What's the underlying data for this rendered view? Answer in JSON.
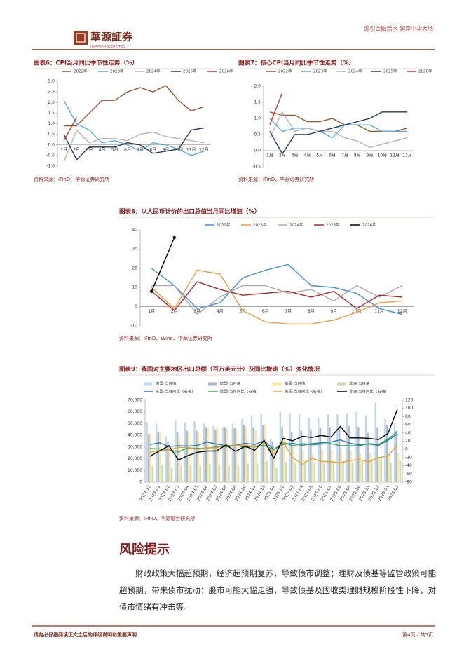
{
  "header": {
    "logo": "華源証券",
    "logo_en": "HUAYUAN SECURITIES",
    "slogan": "源引金融活水 润泽中华大地"
  },
  "chart_data": [
    {
      "type": "line",
      "title": "图表6：CPI当月同比季节性走势（%）",
      "source": "资料来源：iFinD、华源证券研究所",
      "categories": [
        "1月",
        "2月",
        "3月",
        "4月",
        "5月",
        "6月",
        "7月",
        "8月",
        "9月",
        "10月",
        "11月",
        "12月"
      ],
      "series": [
        {
          "name": "2022年",
          "color": "#a0522d",
          "values": [
            0.9,
            0.9,
            1.5,
            2.1,
            2.1,
            2.5,
            2.7,
            2.5,
            2.8,
            2.1,
            1.6,
            1.8
          ]
        },
        {
          "name": "2023年",
          "color": "#5aa9e6",
          "values": [
            2.1,
            1.0,
            0.7,
            0.1,
            0.2,
            0.0,
            -0.3,
            0.1,
            0.0,
            -0.2,
            -0.5,
            -0.3
          ]
        },
        {
          "name": "2024年",
          "color": "#b5b5b5",
          "values": [
            -0.8,
            0.7,
            0.1,
            0.3,
            0.3,
            0.2,
            0.5,
            0.6,
            0.4,
            0.3,
            0.2,
            0.1
          ]
        },
        {
          "name": "2025年",
          "color": "#1f3864",
          "values": [
            0.5,
            -0.7,
            -0.1,
            -0.1,
            -0.1,
            0.1,
            0.0,
            -0.4,
            -0.3,
            -0.2,
            0.7,
            0.8
          ]
        },
        {
          "name": "2026年",
          "color": "#c0392b",
          "values": [
            0.2,
            1.3,
            null,
            null,
            null,
            null,
            null,
            null,
            null,
            null,
            null,
            null
          ]
        }
      ],
      "ylim": [
        -1,
        3
      ],
      "yticks": [
        {
          "value": 3,
          "label": "3.0"
        },
        {
          "value": 2.5,
          "label": "2.5"
        },
        {
          "value": 2,
          "label": "2.0"
        },
        {
          "value": 1.5,
          "label": "1.5"
        },
        {
          "value": 1,
          "label": "1.0"
        },
        {
          "value": 0.5,
          "label": "0.5"
        },
        {
          "value": 0,
          "label": "0.0"
        },
        {
          "value": -0.5,
          "label": "-0.5"
        },
        {
          "value": -1,
          "label": "-1.0"
        }
      ],
      "legend": "top"
    },
    {
      "type": "line",
      "title": "图表7：核心CPI当月同比季节性走势（%）",
      "source": "资料来源：iFinD、华源证券研究所",
      "categories": [
        "1月",
        "2月",
        "3月",
        "4月",
        "5月",
        "6月",
        "7月",
        "8月",
        "9月",
        "10月",
        "11月",
        "12月"
      ],
      "series": [
        {
          "name": "2022年",
          "color": "#a0522d",
          "values": [
            1.2,
            1.1,
            1.1,
            0.9,
            0.9,
            1.0,
            0.8,
            0.8,
            0.6,
            0.6,
            0.6,
            0.7
          ]
        },
        {
          "name": "2023年",
          "color": "#5aa9e6",
          "values": [
            1.0,
            0.6,
            0.7,
            0.7,
            0.6,
            0.4,
            0.8,
            0.8,
            0.8,
            0.6,
            0.6,
            0.6
          ]
        },
        {
          "name": "2024年",
          "color": "#b5b5b5",
          "values": [
            0.4,
            1.2,
            0.6,
            0.7,
            0.6,
            0.6,
            0.4,
            0.3,
            0.1,
            0.2,
            0.3,
            0.4
          ]
        },
        {
          "name": "2025年",
          "color": "#1f3864",
          "values": [
            0.6,
            -0.1,
            0.5,
            0.5,
            0.6,
            0.7,
            0.8,
            0.9,
            1.0,
            1.2,
            1.2,
            1.2
          ]
        },
        {
          "name": "2026年",
          "color": "#c0392b",
          "values": [
            0.8,
            1.8,
            null,
            null,
            null,
            null,
            null,
            null,
            null,
            null,
            null,
            null
          ]
        }
      ],
      "ylim": [
        -0.5,
        2
      ],
      "yticks": [
        {
          "value": 2,
          "label": "2.0"
        },
        {
          "value": 1.5,
          "label": "1.5"
        },
        {
          "value": 1,
          "label": "1.0"
        },
        {
          "value": 0.5,
          "label": "0.5"
        },
        {
          "value": 0,
          "label": "0.0"
        },
        {
          "value": -0.5,
          "label": "-0.5"
        }
      ],
      "legend": "top"
    },
    {
      "type": "line",
      "title": "图表8：以人民币计价的出口总值当月同比增速（%）",
      "source": "资料来源：iFinD、Wind、华源证券研究所",
      "categories": [
        "1月",
        "2月",
        "3月",
        "4月",
        "5月",
        "6月",
        "7月",
        "8月",
        "9月",
        "10月",
        "11月",
        "12月"
      ],
      "series": [
        {
          "name": "2022年",
          "color": "#3a8ee6",
          "values": [
            20,
            11,
            -1,
            2,
            15,
            19,
            22,
            11,
            10,
            7,
            -1,
            -4
          ]
        },
        {
          "name": "2023年",
          "color": "#f39c3c",
          "values": [
            10,
            -1,
            19,
            17,
            -2,
            -8,
            -9,
            -9,
            -7,
            -3,
            2,
            3
          ]
        },
        {
          "name": "2024年",
          "color": "#aaaaaa",
          "values": [
            11,
            11,
            -4,
            5,
            11,
            11,
            7,
            9,
            3,
            11,
            5,
            11
          ]
        },
        {
          "name": "2025年",
          "color": "#b22222",
          "values": [
            8,
            -2,
            13,
            9,
            6,
            7,
            8,
            5,
            8,
            -1,
            6,
            5
          ]
        },
        {
          "name": "2026年",
          "color": "#000000",
          "values": [
            8,
            36,
            null,
            null,
            null,
            null,
            null,
            null,
            null,
            null,
            null,
            null
          ],
          "markers": true
        }
      ],
      "ylim": [
        -10,
        40
      ],
      "yticks": [
        40,
        30,
        20,
        10,
        0,
        -10
      ],
      "legend": "top"
    },
    {
      "type": "combo",
      "title": "图表9：我国对主要地区出口总额（百万美元计）及同比增速（%）变化情况",
      "source": "资料来源：iFinD、华源证券研究所",
      "categories": [
        "2023-12",
        "2024-01",
        "2024-02",
        "2024-03",
        "2024-04",
        "2024-05",
        "2024-06",
        "2024-07",
        "2024-08",
        "2024-09",
        "2024-10",
        "2024-11",
        "2024-12",
        "2025-01",
        "2025-02",
        "2025-03",
        "2025-04",
        "2025-05",
        "2025-06",
        "2025-07",
        "2025-08",
        "2025-09",
        "2025-10",
        "2025-11",
        "2025-12",
        "2026-01",
        "2026-02"
      ],
      "series": [
        {
          "name": "东盟:当月值",
          "color": "#bdd7ee",
          "kind": "bar",
          "values": [
            51000,
            50000,
            39000,
            53000,
            51000,
            52000,
            50000,
            48000,
            47000,
            50000,
            54000,
            57000,
            58000,
            37000,
            60000,
            59000,
            58000,
            55000,
            55000,
            58000,
            58000,
            59000,
            60000,
            57000,
            68000,
            54000,
            50000
          ]
        },
        {
          "name": "欧盟:当月值",
          "color": "#a9b8cc",
          "kind": "bar",
          "values": [
            41000,
            43000,
            35000,
            43000,
            44000,
            44000,
            47000,
            45000,
            47000,
            46000,
            49000,
            47000,
            49000,
            35000,
            47000,
            43000,
            44000,
            45000,
            46000,
            47000,
            47000,
            48000,
            47000,
            42000,
            47000,
            49000,
            44000
          ]
        },
        {
          "name": "美国:当月值",
          "color": "#ffe699",
          "kind": "bar",
          "values": [
            42000,
            43000,
            32000,
            38000,
            42000,
            43000,
            46000,
            46000,
            46000,
            44000,
            47000,
            45000,
            49000,
            30000,
            40000,
            32000,
            28000,
            25000,
            28000,
            27000,
            28000,
            27000,
            24000,
            25000,
            21000,
            24000,
            25000
          ]
        },
        {
          "name": "非洲:当月值",
          "color": "#c6e0b4",
          "kind": "bar",
          "values": [
            14000,
            15000,
            12000,
            15000,
            15000,
            14000,
            16000,
            15000,
            14000,
            14000,
            16000,
            16000,
            18000,
            12000,
            17000,
            17000,
            18000,
            17000,
            17000,
            18000,
            18000,
            17000,
            18000,
            20000,
            22000,
            17000,
            18000
          ]
        },
        {
          "name": "东盟:当月同比（右轴）",
          "color": "#2e75b6",
          "kind": "line",
          "axis": "y2",
          "values": [
            12,
            16,
            7,
            9,
            8,
            10,
            18,
            13,
            9,
            10,
            15,
            12,
            21,
            0,
            12,
            15,
            10,
            14,
            16,
            18,
            23,
            15,
            11,
            13,
            10,
            22,
            38
          ]
        },
        {
          "name": "欧盟:当月同比（右轴）",
          "color": "#2eaa5c",
          "kind": "line",
          "axis": "y2",
          "values": [
            2,
            1,
            -1,
            -6,
            4,
            2,
            3,
            6,
            6,
            10,
            5,
            8,
            10,
            -1,
            17,
            9,
            14,
            11,
            13,
            14,
            9,
            9,
            9,
            14,
            12,
            25,
            44
          ]
        },
        {
          "name": "美国:当月同比（右轴）",
          "color": "#f0a030",
          "kind": "line",
          "axis": "y2",
          "values": [
            -7,
            -3,
            -1,
            5,
            5,
            0,
            4,
            4,
            9,
            9,
            11,
            5,
            16,
            -11,
            17,
            -20,
            -36,
            -22,
            -29,
            -30,
            -33,
            -27,
            -25,
            -30,
            -20,
            -16,
            12
          ]
        },
        {
          "name": "非洲:当月同比（右轴）",
          "color": "#000000",
          "kind": "line",
          "axis": "y2",
          "values": [
            -17,
            -4,
            9,
            -26,
            -15,
            -7,
            -4,
            -4,
            11,
            -5,
            8,
            -2,
            22,
            -22,
            27,
            21,
            32,
            29,
            34,
            30,
            56,
            28,
            28,
            27,
            24,
            39,
            99
          ]
        }
      ],
      "ylim": [
        0,
        70000
      ],
      "yticks": [
        0,
        {
          "value": 10000,
          "label": "10,000"
        },
        {
          "value": 20000,
          "label": "20,000"
        },
        {
          "value": 30000,
          "label": "30,000"
        },
        {
          "value": 40000,
          "label": "40,000"
        },
        {
          "value": 50000,
          "label": "50,000"
        },
        {
          "value": 60000,
          "label": "60,000"
        },
        {
          "value": 70000,
          "label": "70,000"
        }
      ],
      "y2lim": [
        -80,
        120
      ],
      "y2ticks": [
        -80,
        -60,
        -40,
        -20,
        0,
        20,
        40,
        60,
        80,
        100,
        120
      ],
      "legend": "top"
    }
  ],
  "section": {
    "title": "风险提示",
    "paragraph": "财政政策大幅超预期，经济超预期复苏，导致债市调整；理财及债基等监管政策可能超预期，带来债市扰动；股市可能大幅走强，导致债基及固收类理财规模阶段性下降，对债市情绪有冲击等。"
  },
  "footer": {
    "disclaimer": "请务必仔细阅读正文之后的评级说明和重要声明",
    "page": "第4页／共5页"
  }
}
